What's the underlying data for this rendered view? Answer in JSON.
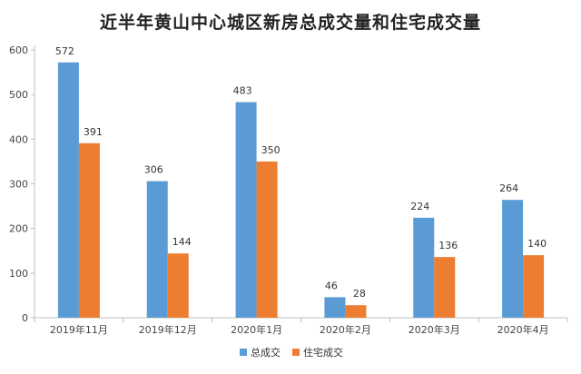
{
  "chart_data": {
    "type": "bar",
    "title": "近半年黄山中心城区新房总成交量和住宅成交量",
    "xlabel": "",
    "ylabel": "",
    "categories": [
      "2019年11月",
      "2019年12月",
      "2020年1月",
      "2020年2月",
      "2020年3月",
      "2020年4月"
    ],
    "series": [
      {
        "name": "总成交",
        "color": "#5b9bd5",
        "values": [
          572,
          306,
          483,
          46,
          224,
          264
        ]
      },
      {
        "name": "住宅成交",
        "color": "#ed7d31",
        "values": [
          391,
          144,
          350,
          28,
          136,
          140
        ]
      }
    ],
    "ylim": [
      0,
      600
    ],
    "yticks": [
      0,
      100,
      200,
      300,
      400,
      500,
      600
    ],
    "grid": false,
    "legend_position": "bottom"
  }
}
